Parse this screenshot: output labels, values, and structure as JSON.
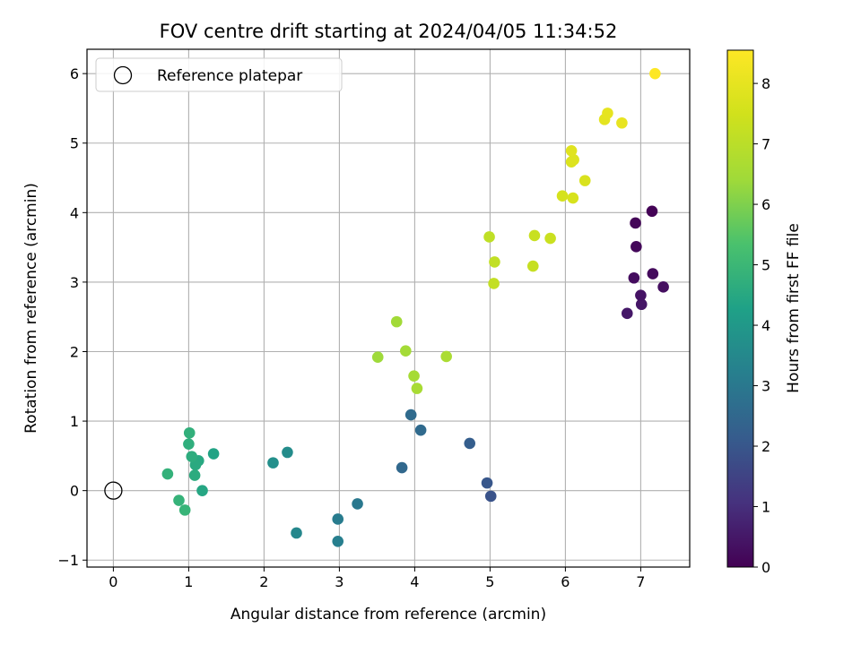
{
  "chart_data": {
    "type": "scatter",
    "title": "FOV centre drift starting at 2024/04/05 11:34:52",
    "xlabel": "Angular distance from reference (arcmin)",
    "ylabel": "Rotation from reference (arcmin)",
    "xlim": [
      -0.35,
      7.65
    ],
    "ylim": [
      -1.1,
      6.35
    ],
    "xticks": [
      0,
      1,
      2,
      3,
      4,
      5,
      6,
      7
    ],
    "yticks": [
      -1,
      0,
      1,
      2,
      3,
      4,
      5,
      6
    ],
    "grid": true,
    "legend": {
      "placement": "top-left",
      "entries": [
        "Reference platepar"
      ]
    },
    "reference_point": {
      "x": 0,
      "y": 0,
      "label": "Reference platepar"
    },
    "colorbar": {
      "label": "Hours from first FF file",
      "colormap": "viridis",
      "range": [
        0,
        8.55
      ],
      "ticks": [
        0,
        1,
        2,
        3,
        4,
        5,
        6,
        7,
        8
      ]
    },
    "points": [
      {
        "x": 6.82,
        "y": 2.55,
        "c": 0.5
      },
      {
        "x": 7.01,
        "y": 2.68,
        "c": 0.45
      },
      {
        "x": 7.0,
        "y": 2.81,
        "c": 0.4
      },
      {
        "x": 7.3,
        "y": 2.93,
        "c": 0.3
      },
      {
        "x": 6.91,
        "y": 3.06,
        "c": 0.25
      },
      {
        "x": 7.16,
        "y": 3.12,
        "c": 0.2
      },
      {
        "x": 6.94,
        "y": 3.51,
        "c": 0.15
      },
      {
        "x": 6.93,
        "y": 3.85,
        "c": 0.1
      },
      {
        "x": 7.15,
        "y": 4.02,
        "c": 0.05
      },
      {
        "x": 5.01,
        "y": -0.08,
        "c": 1.9
      },
      {
        "x": 4.96,
        "y": 0.11,
        "c": 2.0
      },
      {
        "x": 4.73,
        "y": 0.68,
        "c": 2.2
      },
      {
        "x": 4.08,
        "y": 0.87,
        "c": 2.55
      },
      {
        "x": 3.95,
        "y": 1.09,
        "c": 2.6
      },
      {
        "x": 3.83,
        "y": 0.33,
        "c": 2.5
      },
      {
        "x": 3.24,
        "y": -0.19,
        "c": 3.0
      },
      {
        "x": 2.98,
        "y": -0.41,
        "c": 3.1
      },
      {
        "x": 2.98,
        "y": -0.73,
        "c": 3.2
      },
      {
        "x": 2.43,
        "y": -0.61,
        "c": 3.45
      },
      {
        "x": 2.31,
        "y": 0.55,
        "c": 3.6
      },
      {
        "x": 2.12,
        "y": 0.4,
        "c": 3.7
      },
      {
        "x": 1.33,
        "y": 0.53,
        "c": 4.35
      },
      {
        "x": 1.18,
        "y": 0.0,
        "c": 4.45
      },
      {
        "x": 1.13,
        "y": 0.43,
        "c": 4.5
      },
      {
        "x": 1.09,
        "y": 0.37,
        "c": 4.55
      },
      {
        "x": 1.08,
        "y": 0.22,
        "c": 4.6
      },
      {
        "x": 1.04,
        "y": 0.49,
        "c": 4.65
      },
      {
        "x": 1.0,
        "y": 0.67,
        "c": 4.7
      },
      {
        "x": 1.01,
        "y": 0.83,
        "c": 4.75
      },
      {
        "x": 0.72,
        "y": 0.24,
        "c": 4.8
      },
      {
        "x": 0.87,
        "y": -0.14,
        "c": 4.85
      },
      {
        "x": 0.95,
        "y": -0.28,
        "c": 4.9
      },
      {
        "x": 3.51,
        "y": 1.92,
        "c": 6.4
      },
      {
        "x": 3.76,
        "y": 2.43,
        "c": 6.45
      },
      {
        "x": 3.88,
        "y": 2.01,
        "c": 6.5
      },
      {
        "x": 3.99,
        "y": 1.65,
        "c": 6.55
      },
      {
        "x": 4.03,
        "y": 1.47,
        "c": 6.6
      },
      {
        "x": 4.42,
        "y": 1.93,
        "c": 6.65
      },
      {
        "x": 4.99,
        "y": 3.65,
        "c": 7.1
      },
      {
        "x": 5.06,
        "y": 3.29,
        "c": 7.15
      },
      {
        "x": 5.05,
        "y": 2.98,
        "c": 7.2
      },
      {
        "x": 5.57,
        "y": 3.23,
        "c": 7.25
      },
      {
        "x": 5.59,
        "y": 3.67,
        "c": 7.3
      },
      {
        "x": 5.8,
        "y": 3.63,
        "c": 7.35
      },
      {
        "x": 5.96,
        "y": 4.24,
        "c": 7.6
      },
      {
        "x": 6.1,
        "y": 4.21,
        "c": 7.65
      },
      {
        "x": 6.26,
        "y": 4.46,
        "c": 7.7
      },
      {
        "x": 6.08,
        "y": 4.73,
        "c": 7.75
      },
      {
        "x": 6.11,
        "y": 4.76,
        "c": 7.8
      },
      {
        "x": 6.08,
        "y": 4.89,
        "c": 7.85
      },
      {
        "x": 6.52,
        "y": 5.34,
        "c": 7.95
      },
      {
        "x": 6.56,
        "y": 5.43,
        "c": 8.0
      },
      {
        "x": 6.75,
        "y": 5.29,
        "c": 8.05
      },
      {
        "x": 7.19,
        "y": 6.0,
        "c": 8.55
      }
    ]
  }
}
